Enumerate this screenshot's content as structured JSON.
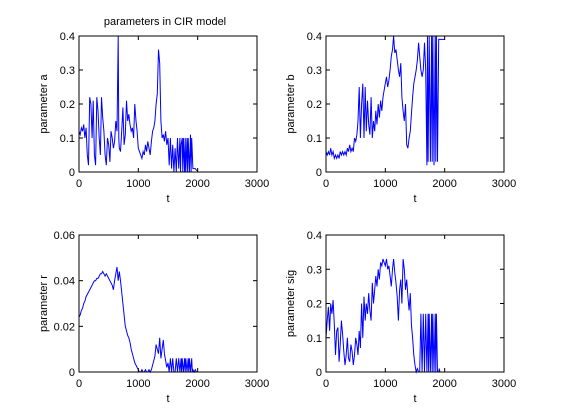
{
  "figure_title": "parameters in CIR model",
  "colors": {
    "line": "#0000ff",
    "axes": "#000000",
    "background": "#ffffff"
  },
  "chart_data": [
    {
      "type": "line",
      "title": "parameters in CIR model",
      "xlabel": "t",
      "ylabel": "parameter a",
      "xlim": [
        0,
        3000
      ],
      "ylim": [
        0,
        0.4
      ],
      "xticks": [
        0,
        1000,
        2000,
        3000
      ],
      "xtick_labels": [
        "0",
        "1000",
        "2000",
        "3000"
      ],
      "yticks": [
        0,
        0.1,
        0.2,
        0.3,
        0.4
      ],
      "ytick_labels": [
        "0",
        "0.1",
        "0.2",
        "0.3",
        "0.4"
      ],
      "grid": false,
      "series": [
        {
          "color": "#0000ff",
          "x": [
            0,
            20,
            40,
            60,
            80,
            100,
            120,
            140,
            160,
            180,
            200,
            220,
            240,
            260,
            280,
            300,
            320,
            340,
            360,
            380,
            400,
            420,
            440,
            460,
            480,
            500,
            520,
            540,
            560,
            580,
            600,
            620,
            640,
            660,
            670,
            680,
            700,
            720,
            740,
            760,
            780,
            800,
            820,
            840,
            860,
            880,
            900,
            920,
            940,
            960,
            980,
            1000,
            1020,
            1040,
            1060,
            1080,
            1100,
            1120,
            1140,
            1160,
            1180,
            1200,
            1220,
            1240,
            1260,
            1280,
            1300,
            1320,
            1340,
            1360,
            1380,
            1400,
            1420,
            1440,
            1460,
            1480,
            1500,
            1520,
            1540,
            1560,
            1580,
            1600,
            1620,
            1640,
            1660,
            1680,
            1700,
            1710,
            1720,
            1740,
            1750,
            1760,
            1780,
            1790,
            1800,
            1820,
            1830,
            1840,
            1860,
            1880,
            1890,
            1900,
            1920,
            1940,
            1960,
            1980,
            2000
          ],
          "y": [
            0.12,
            0.11,
            0.13,
            0.12,
            0.14,
            0.1,
            0.13,
            0.05,
            0.02,
            0.22,
            0.2,
            0.1,
            0.21,
            0.05,
            0.02,
            0.22,
            0.18,
            0.1,
            0.05,
            0.22,
            0.16,
            0.12,
            0.05,
            0.02,
            0.1,
            0.08,
            0.03,
            0.12,
            0.1,
            0.07,
            0.09,
            0.15,
            0.12,
            0.4,
            0.1,
            0.07,
            0.06,
            0.12,
            0.19,
            0.08,
            0.11,
            0.21,
            0.15,
            0.17,
            0.14,
            0.12,
            0.13,
            0.1,
            0.2,
            0.15,
            0.12,
            0.07,
            0.06,
            0.05,
            0.04,
            0.06,
            0.05,
            0.08,
            0.06,
            0.09,
            0.07,
            0.05,
            0.09,
            0.12,
            0.13,
            0.15,
            0.2,
            0.23,
            0.36,
            0.32,
            0.15,
            0.1,
            0.11,
            0.09,
            0.12,
            0.08,
            0.1,
            0.02,
            0.1,
            0.01,
            0.08,
            0.0,
            0.07,
            0.0,
            0.1,
            0.01,
            0.1,
            0.0,
            0.08,
            0.1,
            0.0,
            0.1,
            0.0,
            0.1,
            0.0,
            0.1,
            0.0,
            0.1,
            0.0,
            0.11,
            0.0,
            0.1,
            0.01,
            0.01,
            0.01,
            0.005,
            0.005
          ]
        }
      ]
    },
    {
      "type": "line",
      "xlabel": "t",
      "ylabel": "parameter b",
      "xlim": [
        0,
        3000
      ],
      "ylim": [
        0,
        0.4
      ],
      "xticks": [
        0,
        1000,
        2000,
        3000
      ],
      "xtick_labels": [
        "0",
        "1000",
        "2000",
        "3000"
      ],
      "yticks": [
        0,
        0.1,
        0.2,
        0.3,
        0.4
      ],
      "ytick_labels": [
        "0",
        "0.1",
        "0.2",
        "0.3",
        "0.4"
      ],
      "grid": false,
      "series": [
        {
          "color": "#0000ff",
          "x": [
            0,
            20,
            40,
            60,
            80,
            100,
            120,
            140,
            160,
            180,
            200,
            220,
            240,
            260,
            280,
            300,
            320,
            340,
            360,
            380,
            400,
            420,
            440,
            460,
            480,
            500,
            520,
            540,
            560,
            580,
            600,
            620,
            640,
            660,
            680,
            700,
            720,
            740,
            760,
            780,
            800,
            820,
            840,
            860,
            880,
            900,
            920,
            940,
            960,
            980,
            1000,
            1020,
            1040,
            1060,
            1080,
            1100,
            1120,
            1140,
            1160,
            1180,
            1200,
            1220,
            1240,
            1260,
            1280,
            1300,
            1320,
            1340,
            1360,
            1380,
            1400,
            1420,
            1440,
            1460,
            1480,
            1500,
            1520,
            1540,
            1560,
            1580,
            1600,
            1620,
            1640,
            1660,
            1680,
            1700,
            1710,
            1720,
            1740,
            1760,
            1780,
            1790,
            1800,
            1820,
            1840,
            1850,
            1860,
            1880,
            1900,
            1910,
            1920,
            1940,
            1960,
            1980,
            2000
          ],
          "y": [
            0.06,
            0.05,
            0.06,
            0.05,
            0.07,
            0.05,
            0.06,
            0.04,
            0.05,
            0.04,
            0.05,
            0.04,
            0.06,
            0.05,
            0.06,
            0.05,
            0.06,
            0.05,
            0.07,
            0.06,
            0.08,
            0.06,
            0.07,
            0.06,
            0.1,
            0.09,
            0.11,
            0.15,
            0.25,
            0.1,
            0.2,
            0.26,
            0.1,
            0.25,
            0.12,
            0.21,
            0.14,
            0.11,
            0.22,
            0.1,
            0.15,
            0.12,
            0.18,
            0.14,
            0.2,
            0.16,
            0.21,
            0.18,
            0.22,
            0.24,
            0.26,
            0.28,
            0.25,
            0.27,
            0.3,
            0.34,
            0.36,
            0.4,
            0.35,
            0.36,
            0.33,
            0.3,
            0.28,
            0.32,
            0.22,
            0.18,
            0.15,
            0.2,
            0.08,
            0.07,
            0.1,
            0.12,
            0.17,
            0.22,
            0.26,
            0.28,
            0.3,
            0.33,
            0.38,
            0.34,
            0.3,
            0.28,
            0.3,
            0.38,
            0.3,
            0.02,
            0.4,
            0.03,
            0.4,
            0.03,
            0.4,
            0.03,
            0.4,
            0.02,
            0.4,
            0.03,
            0.4,
            0.03,
            0.39,
            0.39,
            0.39,
            0.39,
            0.39,
            0.39,
            0.39
          ]
        }
      ]
    },
    {
      "type": "line",
      "xlabel": "t",
      "ylabel": "parameter r",
      "xlim": [
        0,
        3000
      ],
      "ylim": [
        0,
        0.06
      ],
      "xticks": [
        0,
        1000,
        2000,
        3000
      ],
      "xtick_labels": [
        "0",
        "1000",
        "2000",
        "3000"
      ],
      "yticks": [
        0,
        0.02,
        0.04,
        0.06
      ],
      "ytick_labels": [
        "0",
        "0.02",
        "0.04",
        "0.06"
      ],
      "grid": false,
      "series": [
        {
          "color": "#0000ff",
          "x": [
            0,
            20,
            40,
            60,
            80,
            100,
            120,
            140,
            160,
            180,
            200,
            220,
            240,
            260,
            280,
            300,
            320,
            340,
            360,
            380,
            400,
            420,
            440,
            460,
            480,
            500,
            520,
            540,
            560,
            580,
            600,
            620,
            640,
            660,
            680,
            700,
            720,
            740,
            760,
            780,
            800,
            820,
            840,
            860,
            880,
            900,
            920,
            940,
            960,
            980,
            1000,
            1020,
            1040,
            1060,
            1080,
            1100,
            1120,
            1140,
            1160,
            1180,
            1200,
            1220,
            1240,
            1260,
            1280,
            1300,
            1320,
            1340,
            1360,
            1380,
            1400,
            1420,
            1440,
            1460,
            1480,
            1500,
            1520,
            1540,
            1560,
            1580,
            1600,
            1620,
            1640,
            1660,
            1680,
            1700,
            1720,
            1730,
            1740,
            1760,
            1780,
            1790,
            1800,
            1820,
            1840,
            1850,
            1860,
            1880,
            1900,
            1910,
            1920,
            1940,
            1960,
            1980,
            2000
          ],
          "y": [
            0.024,
            0.025,
            0.027,
            0.028,
            0.03,
            0.031,
            0.033,
            0.034,
            0.035,
            0.036,
            0.037,
            0.038,
            0.039,
            0.04,
            0.04,
            0.041,
            0.041,
            0.042,
            0.043,
            0.043,
            0.044,
            0.043,
            0.042,
            0.043,
            0.042,
            0.041,
            0.04,
            0.039,
            0.038,
            0.036,
            0.04,
            0.043,
            0.046,
            0.04,
            0.044,
            0.04,
            0.035,
            0.03,
            0.025,
            0.02,
            0.018,
            0.016,
            0.015,
            0.013,
            0.01,
            0.008,
            0.006,
            0.004,
            0.003,
            0.002,
            0.001,
            0.0,
            0.0,
            0.001,
            0.0,
            0.0,
            0.001,
            0.0,
            0.0,
            0.001,
            0.0,
            0.001,
            0.003,
            0.005,
            0.007,
            0.012,
            0.01,
            0.008,
            0.015,
            0.006,
            0.01,
            0.014,
            0.008,
            0.005,
            0.002,
            0.004,
            0.0,
            0.006,
            0.0,
            0.006,
            0.0,
            0.0,
            0.006,
            0.0,
            0.006,
            0.0,
            0.006,
            0.0,
            0.006,
            0.0,
            0.006,
            0.0,
            0.006,
            0.0,
            0.006,
            0.0,
            0.006,
            0.0,
            0.006,
            0.0,
            0.001,
            0.0,
            0.001,
            0.0,
            0.0
          ]
        }
      ]
    },
    {
      "type": "line",
      "xlabel": "t",
      "ylabel": "parameter sig",
      "xlim": [
        0,
        3000
      ],
      "ylim": [
        0,
        0.4
      ],
      "xticks": [
        0,
        1000,
        2000,
        3000
      ],
      "xtick_labels": [
        "0",
        "1000",
        "2000",
        "3000"
      ],
      "yticks": [
        0,
        0.1,
        0.2,
        0.3,
        0.4
      ],
      "ytick_labels": [
        "0",
        "0.1",
        "0.2",
        "0.3",
        "0.4"
      ],
      "grid": false,
      "series": [
        {
          "color": "#0000ff",
          "x": [
            0,
            20,
            40,
            60,
            80,
            100,
            120,
            140,
            160,
            180,
            200,
            220,
            240,
            260,
            280,
            300,
            320,
            340,
            360,
            380,
            400,
            420,
            440,
            460,
            480,
            500,
            520,
            540,
            560,
            580,
            600,
            620,
            640,
            660,
            680,
            700,
            720,
            740,
            760,
            780,
            800,
            820,
            840,
            860,
            880,
            900,
            920,
            940,
            960,
            980,
            1000,
            1020,
            1040,
            1060,
            1080,
            1100,
            1120,
            1140,
            1160,
            1180,
            1200,
            1220,
            1240,
            1260,
            1280,
            1300,
            1320,
            1340,
            1360,
            1380,
            1400,
            1420,
            1440,
            1460,
            1480,
            1500,
            1520,
            1540,
            1560,
            1580,
            1600,
            1620,
            1640,
            1660,
            1680,
            1700,
            1720,
            1730,
            1740,
            1760,
            1780,
            1790,
            1800,
            1820,
            1840,
            1850,
            1860,
            1880,
            1900,
            1910,
            1920,
            1940,
            1960,
            1980,
            2000
          ],
          "y": [
            0.1,
            0.15,
            0.19,
            0.12,
            0.2,
            0.17,
            0.21,
            0.14,
            0.05,
            0.12,
            0.13,
            0.03,
            0.08,
            0.15,
            0.11,
            0.06,
            0.02,
            0.05,
            0.1,
            0.04,
            0.03,
            0.08,
            0.06,
            0.02,
            0.05,
            0.1,
            0.08,
            0.05,
            0.12,
            0.07,
            0.2,
            0.1,
            0.22,
            0.15,
            0.2,
            0.17,
            0.23,
            0.18,
            0.15,
            0.26,
            0.2,
            0.24,
            0.28,
            0.25,
            0.3,
            0.27,
            0.32,
            0.31,
            0.33,
            0.32,
            0.31,
            0.33,
            0.3,
            0.31,
            0.28,
            0.25,
            0.3,
            0.33,
            0.29,
            0.26,
            0.22,
            0.15,
            0.24,
            0.27,
            0.2,
            0.33,
            0.3,
            0.24,
            0.27,
            0.22,
            0.18,
            0.23,
            0.14,
            0.1,
            0.05,
            0.02,
            0.0,
            0.01,
            0.0,
            0.0,
            0.17,
            0.0,
            0.17,
            0.0,
            0.17,
            0.0,
            0.17,
            0.0,
            0.17,
            0.0,
            0.17,
            0.0,
            0.17,
            0.0,
            0.17,
            0.0,
            0.17,
            0.0,
            0.0,
            0.01,
            0.0,
            0.0,
            0.0,
            0.0,
            0.0
          ]
        }
      ]
    }
  ]
}
